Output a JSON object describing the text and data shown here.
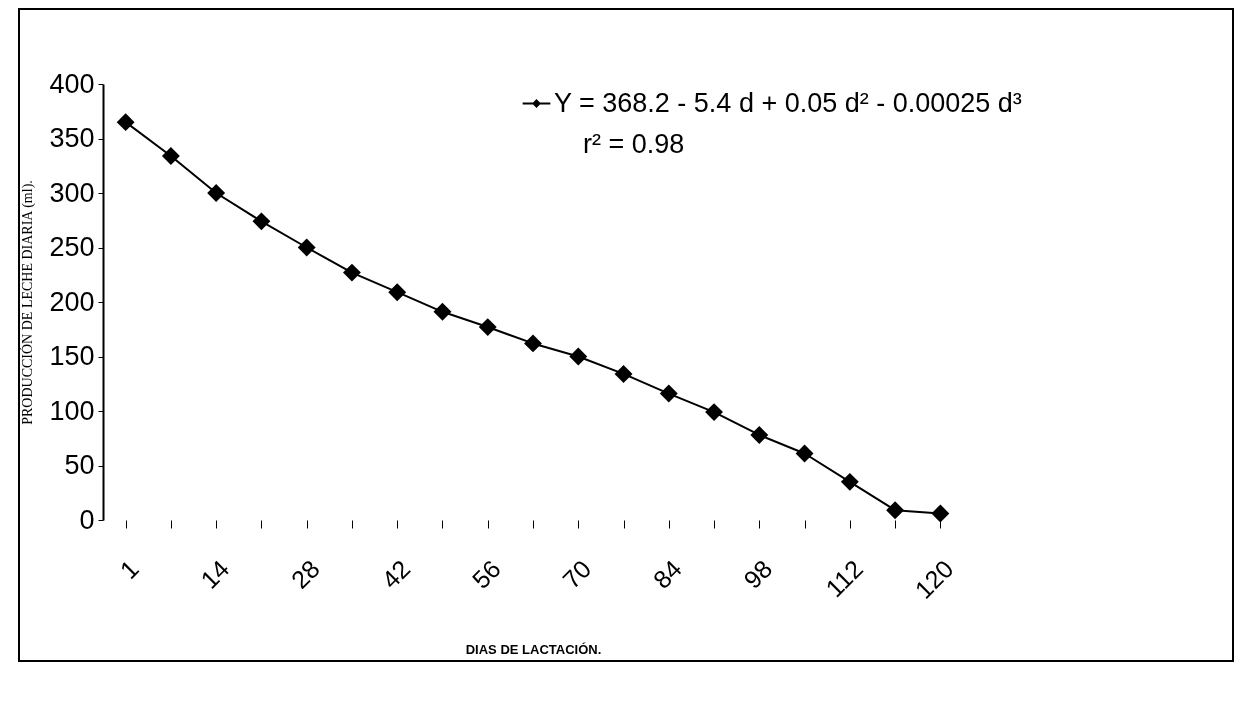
{
  "chart_data": {
    "type": "line",
    "xlabel": "DIAS DE LACTACIÓN.",
    "ylabel": "PRODUCCIÓN DE LECHE DIARIA (ml).",
    "categories": [
      "1",
      null,
      "14",
      null,
      "28",
      null,
      "42",
      null,
      "56",
      null,
      "70",
      null,
      "84",
      null,
      "98",
      null,
      "112",
      null,
      "120"
    ],
    "series": [
      {
        "name": "Y = 368.2 - 5.4 d + 0.05 d² - 0.00025 d³",
        "color": "#000000",
        "values": [
          365,
          334,
          300,
          274,
          250,
          227,
          209,
          191,
          177,
          162,
          150,
          134,
          116,
          99,
          78,
          61,
          35,
          9,
          6
        ]
      }
    ],
    "annotations": [
      "r² = 0.98"
    ],
    "ylim": [
      0,
      400
    ],
    "yticks": [
      0,
      50,
      100,
      150,
      200,
      250,
      300,
      350,
      400
    ],
    "grid": false,
    "legend": "top right",
    "marker": "diamond",
    "line_style": "solid"
  }
}
